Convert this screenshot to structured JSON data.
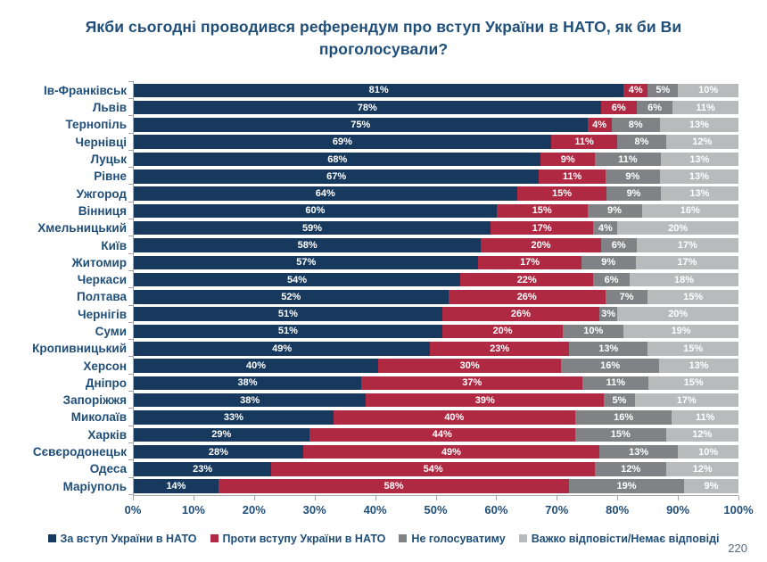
{
  "title": "Якби сьогодні проводився референдум про вступ України в НАТО, як би Ви проголосували?",
  "page_number": "220",
  "colors": {
    "title_text": "#1F4E79",
    "axis_line": "#A6A6A6",
    "bar_value_text": "#FFFFFF",
    "page_number_text": "#5B6B7E"
  },
  "chart_data": {
    "type": "bar",
    "orientation": "horizontal",
    "stacked": true,
    "title": "Якби сьогодні проводився референдум про вступ України в НАТО, як би Ви проголосували?",
    "xlabel": "",
    "ylabel": "",
    "xlim": [
      0,
      100
    ],
    "value_suffix": "%",
    "grid": false,
    "legend_position": "bottom",
    "x_ticks": [
      "0%",
      "10%",
      "20%",
      "30%",
      "40%",
      "50%",
      "60%",
      "70%",
      "80%",
      "90%",
      "100%"
    ],
    "categories": [
      "Ів-Франківськ",
      "Львів",
      "Тернопіль",
      "Чернівці",
      "Луцьк",
      "Рівне",
      "Ужгород",
      "Вінниця",
      "Хмельницький",
      "Київ",
      "Житомир",
      "Черкаси",
      "Полтава",
      "Чернігів",
      "Суми",
      "Кропивницький",
      "Херсон",
      "Дніпро",
      "Запоріжжя",
      "Миколаїв",
      "Харків",
      "Сєвєродонецьк",
      "Одеса",
      "Маріуполь"
    ],
    "series": [
      {
        "name": "За вступ України в НАТО",
        "color": "#17395E",
        "values": [
          81,
          78,
          75,
          69,
          68,
          67,
          64,
          60,
          59,
          58,
          57,
          54,
          52,
          51,
          51,
          49,
          40,
          38,
          38,
          33,
          29,
          28,
          23,
          14
        ]
      },
      {
        "name": "Проти вступу України в НАТО",
        "color": "#B02942",
        "values": [
          4,
          6,
          4,
          11,
          9,
          11,
          15,
          15,
          17,
          20,
          17,
          22,
          26,
          26,
          20,
          23,
          30,
          37,
          39,
          40,
          44,
          49,
          54,
          58
        ]
      },
      {
        "name": "Не голосуватиму",
        "color": "#808285",
        "values": [
          5,
          6,
          8,
          8,
          11,
          9,
          9,
          9,
          4,
          6,
          9,
          6,
          7,
          3,
          10,
          13,
          16,
          11,
          5,
          16,
          15,
          13,
          12,
          19
        ]
      },
      {
        "name": "Важко відповісти/Немає відповіді",
        "color": "#B9BABC",
        "values": [
          10,
          11,
          13,
          12,
          13,
          13,
          13,
          16,
          20,
          17,
          17,
          18,
          15,
          20,
          19,
          15,
          13,
          15,
          17,
          11,
          12,
          10,
          12,
          9
        ]
      }
    ]
  }
}
